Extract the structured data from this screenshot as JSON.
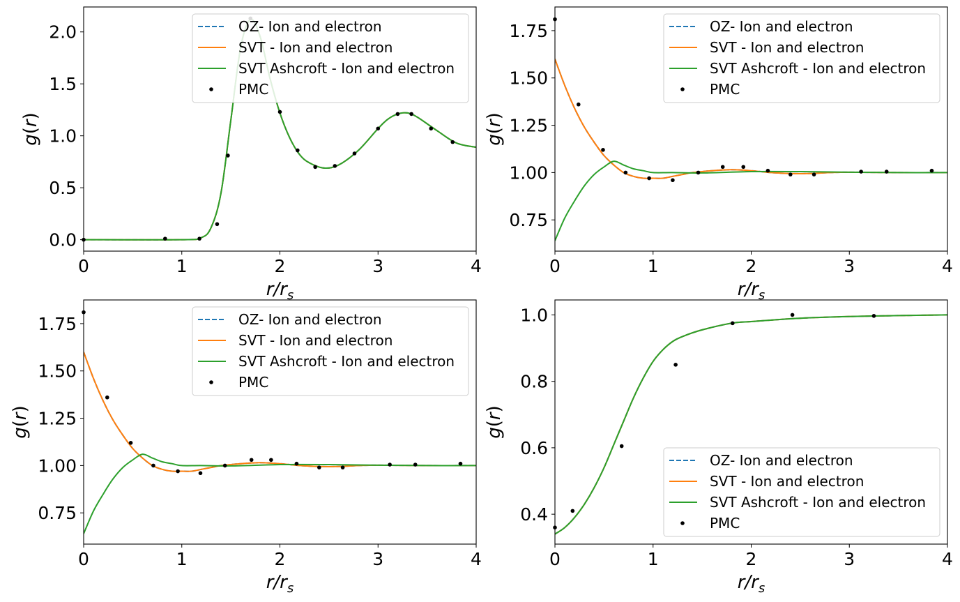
{
  "chart_data": [
    {
      "type": "line",
      "xlabel": "r/r_s",
      "ylabel": "g(r)",
      "xlim": [
        0,
        4
      ],
      "ylim": [
        -0.11,
        2.24
      ],
      "xticks": [
        "0",
        "1",
        "2",
        "3",
        "4"
      ],
      "yticks": [
        "0.0",
        "0.5",
        "1.0",
        "1.5",
        "2.0"
      ],
      "grid": false,
      "legend": "top-right",
      "series": [
        {
          "name": "OZ- Ion and electron",
          "style": "dashed",
          "color": "#1f77b4",
          "x": [
            0,
            1.0,
            1.2,
            1.3,
            1.4,
            1.5,
            1.6,
            1.7,
            1.8,
            1.9,
            2.0,
            2.1,
            2.2,
            2.3,
            2.45,
            2.6,
            2.8,
            3.0,
            3.1,
            3.2,
            3.3,
            3.4,
            3.6,
            3.8,
            4.0
          ],
          "y": [
            0.0,
            0.0,
            0.02,
            0.12,
            0.45,
            1.15,
            1.85,
            2.12,
            1.95,
            1.55,
            1.22,
            0.98,
            0.82,
            0.74,
            0.69,
            0.72,
            0.86,
            1.07,
            1.16,
            1.21,
            1.22,
            1.18,
            1.05,
            0.93,
            0.89
          ]
        },
        {
          "name": "SVT - Ion and electron",
          "style": "solid",
          "color": "#ff7f0e",
          "x": [
            0,
            1.0,
            1.2,
            1.3,
            1.4,
            1.5,
            1.6,
            1.7,
            1.8,
            1.9,
            2.0,
            2.1,
            2.2,
            2.3,
            2.45,
            2.6,
            2.8,
            3.0,
            3.1,
            3.2,
            3.3,
            3.4,
            3.6,
            3.8,
            4.0
          ],
          "y": [
            0.0,
            0.0,
            0.02,
            0.12,
            0.45,
            1.15,
            1.85,
            2.12,
            1.95,
            1.55,
            1.22,
            0.98,
            0.82,
            0.74,
            0.69,
            0.72,
            0.86,
            1.07,
            1.16,
            1.21,
            1.22,
            1.18,
            1.05,
            0.93,
            0.89
          ]
        },
        {
          "name": "SVT Ashcroft - Ion and electron",
          "style": "solid",
          "color": "#2ca02c",
          "x": [
            0,
            1.0,
            1.2,
            1.3,
            1.4,
            1.5,
            1.6,
            1.7,
            1.8,
            1.9,
            2.0,
            2.1,
            2.2,
            2.3,
            2.45,
            2.6,
            2.8,
            3.0,
            3.1,
            3.2,
            3.3,
            3.4,
            3.6,
            3.8,
            4.0
          ],
          "y": [
            0.0,
            0.0,
            0.02,
            0.12,
            0.45,
            1.15,
            1.85,
            2.12,
            1.95,
            1.55,
            1.22,
            0.98,
            0.82,
            0.74,
            0.69,
            0.72,
            0.86,
            1.07,
            1.16,
            1.21,
            1.22,
            1.18,
            1.05,
            0.93,
            0.89
          ]
        },
        {
          "name": "PMC",
          "style": "points",
          "color": "#000000",
          "x": [
            0.0,
            0.83,
            1.18,
            1.36,
            1.47,
            1.7,
            2.0,
            2.18,
            2.36,
            2.56,
            2.76,
            3.0,
            3.2,
            3.34,
            3.54,
            3.76
          ],
          "y": [
            0.0,
            0.01,
            0.01,
            0.15,
            0.81,
            2.13,
            1.23,
            0.86,
            0.7,
            0.71,
            0.83,
            1.07,
            1.21,
            1.21,
            1.07,
            0.94
          ]
        }
      ]
    },
    {
      "type": "line",
      "xlabel": "r/r_s",
      "ylabel": "g(r)",
      "xlim": [
        0,
        4
      ],
      "ylim": [
        0.585,
        1.875
      ],
      "xticks": [
        "0",
        "1",
        "2",
        "3",
        "4"
      ],
      "yticks": [
        "0.75",
        "1.00",
        "1.25",
        "1.50",
        "1.75"
      ],
      "grid": false,
      "legend": "top-right",
      "series": [
        {
          "name": "OZ- Ion and electron",
          "style": "dashed",
          "color": "#1f77b4",
          "x": [
            0,
            0.1,
            0.2,
            0.3,
            0.4,
            0.5,
            0.6,
            0.7,
            0.8,
            0.9,
            1.0,
            1.1,
            1.2,
            1.3,
            1.4,
            1.5,
            1.6,
            1.8,
            2.0,
            2.2,
            2.4,
            2.6,
            2.8,
            3.0,
            3.5,
            4.0
          ],
          "y": [
            1.6,
            1.46,
            1.34,
            1.24,
            1.16,
            1.09,
            1.04,
            1.0,
            0.98,
            0.97,
            0.97,
            0.97,
            0.98,
            0.99,
            1.0,
            1.005,
            1.01,
            1.015,
            1.01,
            1.0,
            0.995,
            0.995,
            1.0,
            1.002,
            1.0,
            1.0
          ]
        },
        {
          "name": "SVT - Ion and electron",
          "style": "solid",
          "color": "#ff7f0e",
          "x": [
            0,
            0.1,
            0.2,
            0.3,
            0.4,
            0.5,
            0.6,
            0.7,
            0.8,
            0.9,
            1.0,
            1.1,
            1.2,
            1.3,
            1.4,
            1.5,
            1.6,
            1.8,
            2.0,
            2.2,
            2.4,
            2.6,
            2.8,
            3.0,
            3.5,
            4.0
          ],
          "y": [
            1.6,
            1.46,
            1.34,
            1.24,
            1.16,
            1.09,
            1.04,
            1.0,
            0.98,
            0.97,
            0.97,
            0.97,
            0.98,
            0.99,
            1.0,
            1.005,
            1.01,
            1.015,
            1.01,
            1.0,
            0.995,
            0.995,
            1.0,
            1.002,
            1.0,
            1.0
          ]
        },
        {
          "name": "SVT Ashcroft - Ion and electron",
          "style": "solid",
          "color": "#2ca02c",
          "x": [
            0,
            0.1,
            0.2,
            0.3,
            0.4,
            0.5,
            0.6,
            0.7,
            0.8,
            0.9,
            1.0,
            1.2,
            1.5,
            2.0,
            2.5,
            3.0,
            3.5,
            4.0
          ],
          "y": [
            0.64,
            0.76,
            0.85,
            0.93,
            0.99,
            1.03,
            1.06,
            1.04,
            1.02,
            1.01,
            1.0,
            1.0,
            0.998,
            1.005,
            1.005,
            1.002,
            1.0,
            1.0
          ]
        },
        {
          "name": "PMC",
          "style": "points",
          "color": "#000000",
          "x": [
            0.0,
            0.24,
            0.49,
            0.72,
            0.96,
            1.2,
            1.46,
            1.71,
            1.92,
            2.17,
            2.4,
            2.64,
            3.12,
            3.38,
            3.84
          ],
          "y": [
            1.81,
            1.36,
            1.12,
            1.0,
            0.97,
            0.96,
            1.0,
            1.03,
            1.03,
            1.01,
            0.99,
            0.99,
            1.005,
            1.005,
            1.01
          ]
        }
      ]
    },
    {
      "type": "line",
      "xlabel": "r/r_s",
      "ylabel": "g(r)",
      "xlim": [
        0,
        4
      ],
      "ylim": [
        0.585,
        1.875
      ],
      "xticks": [
        "0",
        "1",
        "2",
        "3",
        "4"
      ],
      "yticks": [
        "0.75",
        "1.00",
        "1.25",
        "1.50",
        "1.75"
      ],
      "grid": false,
      "legend": "top-right",
      "series": [
        {
          "name": "OZ- Ion and electron",
          "style": "dashed",
          "color": "#1f77b4",
          "x": [
            0,
            0.1,
            0.2,
            0.3,
            0.4,
            0.5,
            0.6,
            0.7,
            0.8,
            0.9,
            1.0,
            1.1,
            1.2,
            1.3,
            1.4,
            1.5,
            1.6,
            1.8,
            2.0,
            2.2,
            2.4,
            2.6,
            2.8,
            3.0,
            3.5,
            4.0
          ],
          "y": [
            1.6,
            1.46,
            1.34,
            1.24,
            1.16,
            1.09,
            1.04,
            1.0,
            0.98,
            0.97,
            0.97,
            0.97,
            0.98,
            0.99,
            1.0,
            1.005,
            1.01,
            1.015,
            1.01,
            1.0,
            0.995,
            0.995,
            1.0,
            1.002,
            1.0,
            1.0
          ]
        },
        {
          "name": "SVT - Ion and electron",
          "style": "solid",
          "color": "#ff7f0e",
          "x": [
            0,
            0.1,
            0.2,
            0.3,
            0.4,
            0.5,
            0.6,
            0.7,
            0.8,
            0.9,
            1.0,
            1.1,
            1.2,
            1.3,
            1.4,
            1.5,
            1.6,
            1.8,
            2.0,
            2.2,
            2.4,
            2.6,
            2.8,
            3.0,
            3.5,
            4.0
          ],
          "y": [
            1.6,
            1.46,
            1.34,
            1.24,
            1.16,
            1.09,
            1.04,
            1.0,
            0.98,
            0.97,
            0.97,
            0.97,
            0.98,
            0.99,
            1.0,
            1.005,
            1.01,
            1.015,
            1.01,
            1.0,
            0.995,
            0.995,
            1.0,
            1.002,
            1.0,
            1.0
          ]
        },
        {
          "name": "SVT Ashcroft - Ion and electron",
          "style": "solid",
          "color": "#2ca02c",
          "x": [
            0,
            0.1,
            0.2,
            0.3,
            0.4,
            0.5,
            0.6,
            0.7,
            0.8,
            0.9,
            1.0,
            1.2,
            1.5,
            2.0,
            2.5,
            3.0,
            3.5,
            4.0
          ],
          "y": [
            0.64,
            0.76,
            0.85,
            0.93,
            0.99,
            1.03,
            1.06,
            1.04,
            1.02,
            1.01,
            1.0,
            1.0,
            0.998,
            1.005,
            1.005,
            1.002,
            1.0,
            1.0
          ]
        },
        {
          "name": "PMC",
          "style": "points",
          "color": "#000000",
          "x": [
            0.0,
            0.24,
            0.48,
            0.71,
            0.96,
            1.19,
            1.44,
            1.71,
            1.91,
            2.17,
            2.4,
            2.64,
            3.12,
            3.38,
            3.84
          ],
          "y": [
            1.81,
            1.36,
            1.12,
            1.0,
            0.97,
            0.96,
            1.0,
            1.03,
            1.03,
            1.01,
            0.99,
            0.99,
            1.005,
            1.005,
            1.01
          ]
        }
      ]
    },
    {
      "type": "line",
      "xlabel": "r/r_s",
      "ylabel": "g(r)",
      "xlim": [
        0,
        4
      ],
      "ylim": [
        0.31,
        1.045
      ],
      "xticks": [
        "0",
        "1",
        "2",
        "3",
        "4"
      ],
      "yticks": [
        "0.4",
        "0.6",
        "0.8",
        "1.0"
      ],
      "grid": false,
      "legend": "lower-right",
      "series": [
        {
          "name": "OZ- Ion and electron",
          "style": "dashed",
          "color": "#1f77b4",
          "x": [
            0,
            0.1,
            0.2,
            0.3,
            0.4,
            0.5,
            0.6,
            0.7,
            0.8,
            0.9,
            1.0,
            1.1,
            1.2,
            1.3,
            1.5,
            1.8,
            2.0,
            2.5,
            3.0,
            3.5,
            4.0
          ],
          "y": [
            0.34,
            0.36,
            0.39,
            0.43,
            0.48,
            0.54,
            0.61,
            0.68,
            0.75,
            0.81,
            0.86,
            0.895,
            0.92,
            0.935,
            0.955,
            0.975,
            0.98,
            0.99,
            0.995,
            0.998,
            1.0
          ]
        },
        {
          "name": "SVT - Ion and electron",
          "style": "solid",
          "color": "#ff7f0e",
          "x": [
            0,
            0.1,
            0.2,
            0.3,
            0.4,
            0.5,
            0.6,
            0.7,
            0.8,
            0.9,
            1.0,
            1.1,
            1.2,
            1.3,
            1.5,
            1.8,
            2.0,
            2.5,
            3.0,
            3.5,
            4.0
          ],
          "y": [
            0.34,
            0.36,
            0.39,
            0.43,
            0.48,
            0.54,
            0.61,
            0.68,
            0.75,
            0.81,
            0.86,
            0.895,
            0.92,
            0.935,
            0.955,
            0.975,
            0.98,
            0.99,
            0.995,
            0.998,
            1.0
          ]
        },
        {
          "name": "SVT Ashcroft - Ion and electron",
          "style": "solid",
          "color": "#2ca02c",
          "x": [
            0,
            0.1,
            0.2,
            0.3,
            0.4,
            0.5,
            0.6,
            0.7,
            0.8,
            0.9,
            1.0,
            1.1,
            1.2,
            1.3,
            1.5,
            1.8,
            2.0,
            2.5,
            3.0,
            3.5,
            4.0
          ],
          "y": [
            0.34,
            0.36,
            0.39,
            0.43,
            0.48,
            0.54,
            0.61,
            0.68,
            0.75,
            0.81,
            0.86,
            0.895,
            0.92,
            0.935,
            0.955,
            0.975,
            0.98,
            0.99,
            0.995,
            0.998,
            1.0
          ]
        },
        {
          "name": "PMC",
          "style": "points",
          "color": "#000000",
          "x": [
            0.0,
            0.18,
            0.68,
            1.23,
            1.81,
            2.42,
            3.25
          ],
          "y": [
            0.36,
            0.41,
            0.605,
            0.85,
            0.975,
            1.0,
            0.997
          ]
        }
      ]
    }
  ]
}
